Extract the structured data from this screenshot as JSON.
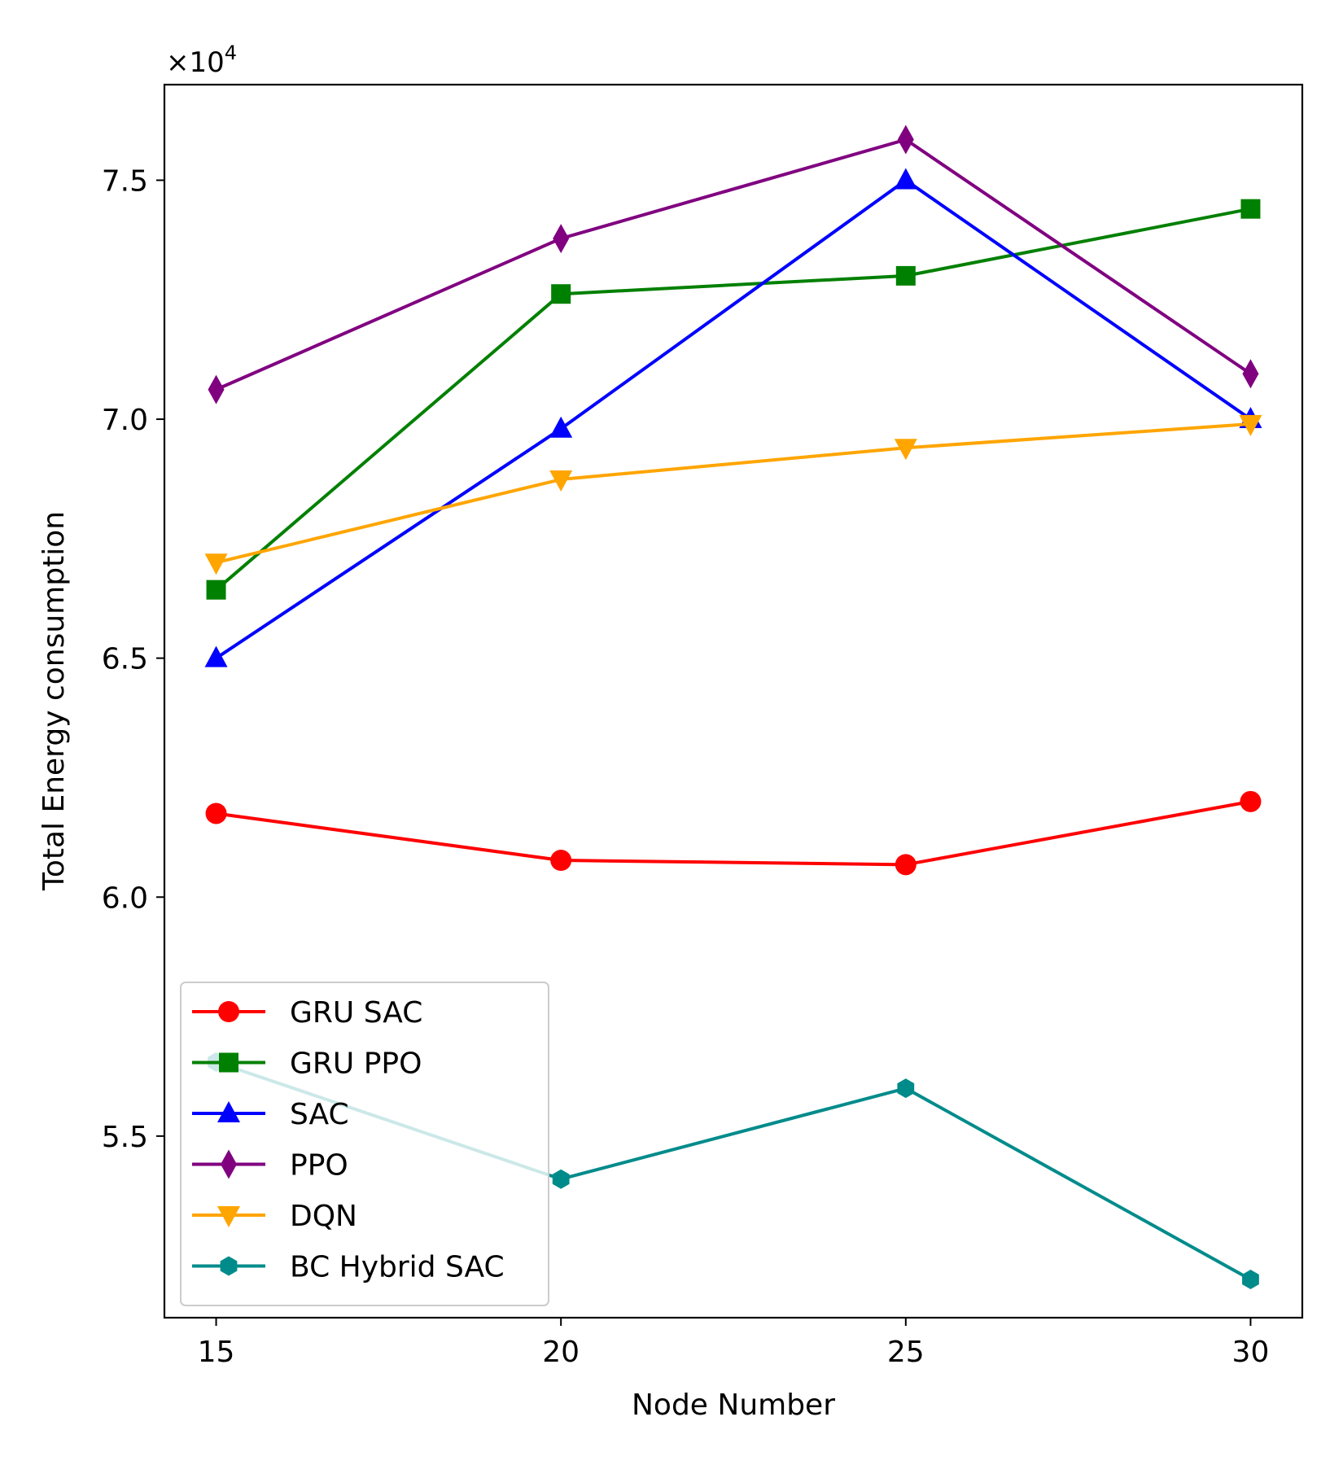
{
  "chart_data": {
    "type": "line",
    "title": "",
    "xlabel": "Node Number",
    "ylabel": "Total Energy consumption",
    "multiplier_label": "×10",
    "multiplier_exp": "4",
    "x": [
      15,
      20,
      25,
      30
    ],
    "xticks": [
      "15",
      "20",
      "25",
      "30"
    ],
    "xlim": [
      14.25,
      30.75
    ],
    "yticks": [
      {
        "value": 5.5,
        "label": "5.5"
      },
      {
        "value": 6.0,
        "label": "6.0"
      },
      {
        "value": 6.5,
        "label": "6.5"
      },
      {
        "value": 7.0,
        "label": "7.0"
      },
      {
        "value": 7.5,
        "label": "7.5"
      }
    ],
    "ylim": [
      5.12,
      7.7
    ],
    "grid": false,
    "legend_position": "lower-left",
    "series": [
      {
        "name": "GRU SAC",
        "color": "#ff0000",
        "marker": "circle",
        "values": [
          6.175,
          6.077,
          6.068,
          6.2
        ]
      },
      {
        "name": "GRU PPO",
        "color": "#008000",
        "marker": "square",
        "values": [
          6.643,
          7.262,
          7.3,
          7.44
        ]
      },
      {
        "name": "SAC",
        "color": "#0000ff",
        "marker": "triangle-up",
        "values": [
          6.5,
          6.98,
          7.5,
          7.0
        ]
      },
      {
        "name": "PPO",
        "color": "#800080",
        "marker": "thin-diamond",
        "values": [
          7.062,
          7.378,
          7.585,
          7.095
        ]
      },
      {
        "name": "DQN",
        "color": "#ffa500",
        "marker": "triangle-down",
        "values": [
          6.7,
          6.874,
          6.94,
          6.99
        ]
      },
      {
        "name": "BC Hybrid SAC",
        "color": "#008b8b",
        "marker": "hexagon",
        "values": [
          5.655,
          5.41,
          5.6,
          5.2
        ]
      }
    ]
  }
}
